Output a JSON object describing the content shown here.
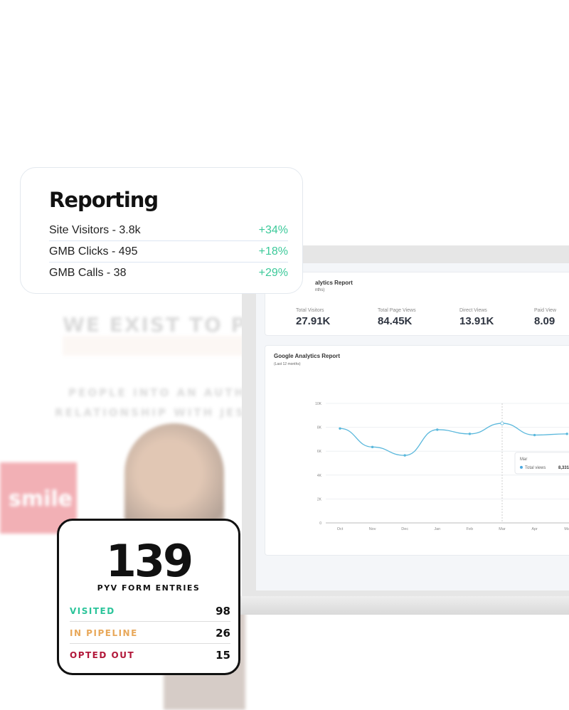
{
  "background": {
    "headline": "WE EXIST TO PR",
    "subline1": "PEOPLE INTO AN AUTH",
    "subline2": "RELATIONSHIP WITH JES",
    "sign": "smile"
  },
  "reporting": {
    "title": "Reporting",
    "rows": [
      {
        "label": "Site Visitors - 3.8k",
        "change": "+34%"
      },
      {
        "label": "GMB Clicks - 495",
        "change": "+18%"
      },
      {
        "label": "GMB Calls - 38",
        "change": "+29%"
      }
    ]
  },
  "analytics": {
    "title": "alytics Report",
    "subtitle": "nths)",
    "stats": [
      {
        "label": "Total Visitors",
        "value": "27.91K"
      },
      {
        "label": "Total Page Views",
        "value": "84.45K"
      },
      {
        "label": "Direct Views",
        "value": "13.91K"
      },
      {
        "label": "Paid View",
        "value": "8.09"
      }
    ]
  },
  "chart_data": {
    "type": "line",
    "title": "Google Analytics Report",
    "subtitle": "(Last 12 months)",
    "categories": [
      "Oct",
      "Nov",
      "Dec",
      "Jan",
      "Feb",
      "Mar",
      "Apr",
      "Ma"
    ],
    "series": [
      {
        "name": "Total views",
        "values": [
          7900,
          6350,
          5650,
          7800,
          7450,
          8331,
          7350,
          7450
        ],
        "color": "#5bb8dc"
      }
    ],
    "yticks": [
      "0",
      "2K",
      "4K",
      "6K",
      "8K",
      "10K"
    ],
    "ylim": [
      0,
      10000
    ],
    "grid": true,
    "tooltip": {
      "category": "Mar",
      "label": "Total views",
      "value": "8,331"
    }
  },
  "pyv": {
    "count": "139",
    "caption": "PYV FORM ENTRIES",
    "rows": [
      {
        "label": "VISITED",
        "value": "98",
        "color": "#2bc49a"
      },
      {
        "label": "IN PIPELINE",
        "value": "26",
        "color": "#e8a85a"
      },
      {
        "label": "OPTED OUT",
        "value": "15",
        "color": "#b2183a"
      }
    ]
  }
}
